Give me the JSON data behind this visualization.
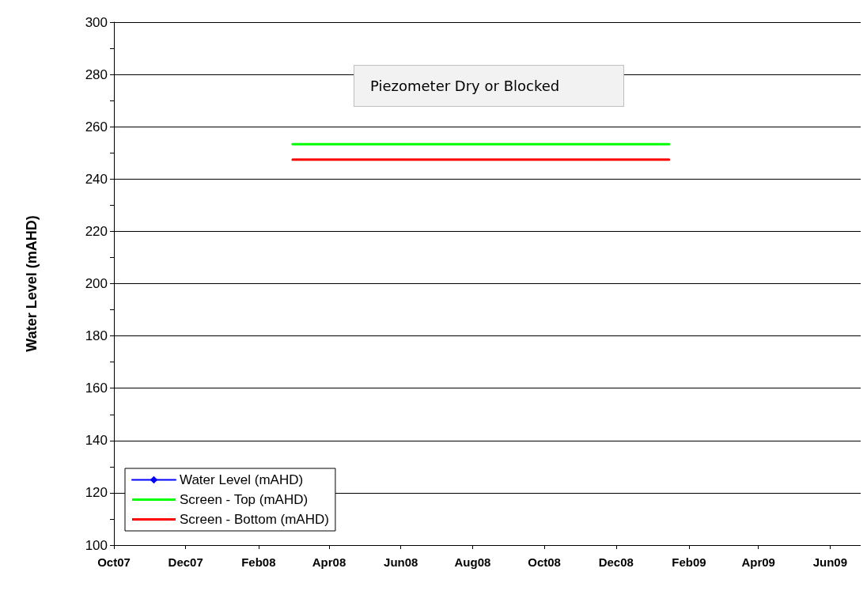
{
  "chart_data": {
    "type": "line",
    "ylabel": "Water Level (mAHD)",
    "annotations": [
      "Piezometer Dry or Blocked"
    ],
    "xlim": [
      "2007-10-01",
      "2009-06-27"
    ],
    "xticks": [
      {
        "value": "2007-10-01",
        "label": "Oct07"
      },
      {
        "value": "2007-12-01",
        "label": "Dec07"
      },
      {
        "value": "2008-02-01",
        "label": "Feb08"
      },
      {
        "value": "2008-04-01",
        "label": "Apr08"
      },
      {
        "value": "2008-06-01",
        "label": "Jun08"
      },
      {
        "value": "2008-08-01",
        "label": "Aug08"
      },
      {
        "value": "2008-10-01",
        "label": "Oct08"
      },
      {
        "value": "2008-12-01",
        "label": "Dec08"
      },
      {
        "value": "2009-02-01",
        "label": "Feb09"
      },
      {
        "value": "2009-04-01",
        "label": "Apr09"
      },
      {
        "value": "2009-06-01",
        "label": "Jun09"
      }
    ],
    "ylim": [
      100,
      300
    ],
    "yticks": [
      100,
      {
        "value": 110,
        "label": null
      },
      120,
      {
        "value": 130,
        "label": null
      },
      140,
      {
        "value": 150,
        "label": null
      },
      160,
      {
        "value": 170,
        "label": null
      },
      180,
      {
        "value": 190,
        "label": null
      },
      200,
      {
        "value": 210,
        "label": null
      },
      220,
      {
        "value": 230,
        "label": null
      },
      240,
      {
        "value": 250,
        "label": null
      },
      260,
      {
        "value": 270,
        "label": null
      },
      280,
      {
        "value": 290,
        "label": null
      },
      300
    ],
    "grid": "y",
    "legend": "bottom left",
    "series": [
      {
        "name": "Water Level (mAHD)",
        "color": "#0000ff",
        "marker": "diamond"
      },
      {
        "name": "Screen - Top (mAHD)",
        "color": "#00ff00",
        "marker": "none",
        "x": [
          "2008-03-01",
          "2009-01-15"
        ],
        "values": [
          253.3,
          253.3
        ]
      },
      {
        "name": "Screen - Bottom (mAHD)",
        "color": "#ff0000",
        "marker": "none",
        "x": [
          "2008-03-01",
          "2009-01-15"
        ],
        "values": [
          247.4,
          247.4
        ]
      }
    ]
  }
}
